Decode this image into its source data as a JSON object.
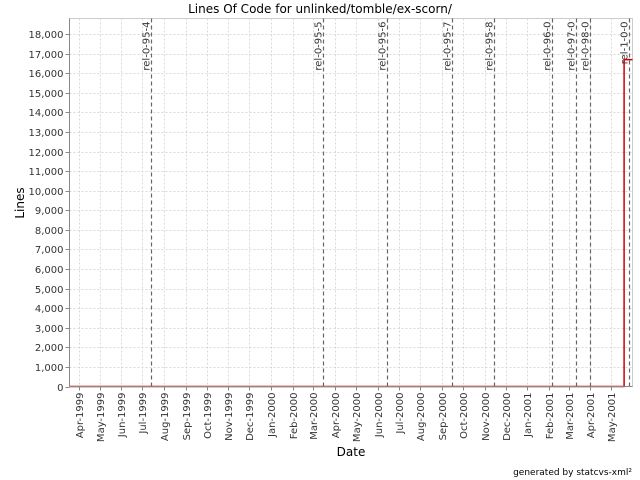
{
  "chart_data": {
    "type": "line",
    "title": "Lines Of Code for unlinked/tomble/ex-scorn/",
    "xlabel": "Date",
    "ylabel": "Lines",
    "x_ticks": [
      "Apr-1999",
      "May-1999",
      "Jun-1999",
      "Jul-1999",
      "Aug-1999",
      "Sep-1999",
      "Oct-1999",
      "Nov-1999",
      "Dec-1999",
      "Jan-2000",
      "Feb-2000",
      "Mar-2000",
      "Apr-2000",
      "May-2000",
      "Jun-2000",
      "Jul-2000",
      "Aug-2000",
      "Sep-2000",
      "Oct-2000",
      "Nov-2000",
      "Dec-2000",
      "Jan-2001",
      "Feb-2001",
      "Mar-2001",
      "Apr-2001",
      "May-2001"
    ],
    "y_ticks": [
      0,
      1000,
      2000,
      3000,
      4000,
      5000,
      6000,
      7000,
      8000,
      9000,
      10000,
      11000,
      12000,
      13000,
      14000,
      15000,
      16000,
      17000,
      18000
    ],
    "ylim": [
      0,
      18800
    ],
    "xlim": [
      "1999-03-19",
      "2001-05-31"
    ],
    "grid": true,
    "legend": "none",
    "series": [
      {
        "color": "#cc0000",
        "x": [
          "1999-03-19",
          "2001-05-19",
          "2001-05-19",
          "2001-05-31"
        ],
        "y": [
          0,
          0,
          16700,
          16700
        ]
      }
    ],
    "annotations": [
      {
        "label": "rel-0-95-4",
        "x": "1999-07-14"
      },
      {
        "label": "rel-0-95-5",
        "x": "2000-03-15"
      },
      {
        "label": "rel-0-95-6",
        "x": "2000-06-15"
      },
      {
        "label": "rel-0-95-7",
        "x": "2000-09-15"
      },
      {
        "label": "rel-0-95-8",
        "x": "2000-11-14"
      },
      {
        "label": "rel-0-96-0",
        "x": "2001-02-05"
      },
      {
        "label": "rel-0-97-0",
        "x": "2001-03-12"
      },
      {
        "label": "rel-0-98-0",
        "x": "2001-04-01"
      },
      {
        "label": "rel-1-0-0",
        "x": "2001-05-26"
      }
    ],
    "footer": "generated by statcvs-xml²"
  }
}
